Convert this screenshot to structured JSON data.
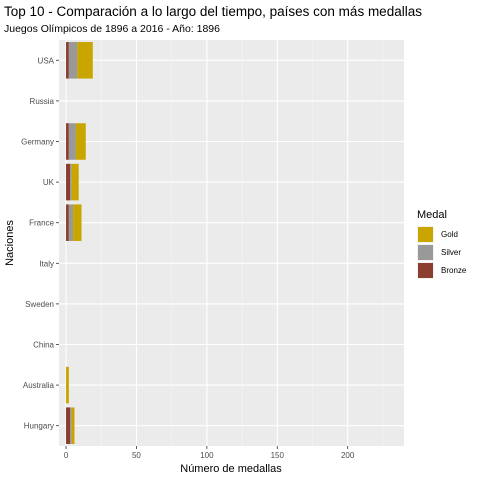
{
  "chart_data": {
    "type": "bar",
    "orientation": "horizontal",
    "stacked": true,
    "title": "Top 10 - Comparación a lo largo del tiempo, países con más medallas",
    "subtitle": "Juegos Olímpicos de 1896 a 2016 - Año: 1896",
    "xlabel": "Número de medallas",
    "ylabel": "Naciones",
    "xlim": [
      -5,
      240
    ],
    "x_ticks": [
      0,
      50,
      100,
      150,
      200
    ],
    "categories": [
      "USA",
      "Russia",
      "Germany",
      "UK",
      "France",
      "Italy",
      "Sweden",
      "China",
      "Australia",
      "Hungary"
    ],
    "series": [
      {
        "name": "Bronze",
        "color": "#8B3E2F",
        "values": [
          2,
          0,
          2,
          3,
          2,
          0,
          0,
          0,
          0,
          3
        ]
      },
      {
        "name": "Silver",
        "color": "#999999",
        "values": [
          6,
          0,
          5,
          1,
          3,
          0,
          0,
          0,
          0,
          1
        ]
      },
      {
        "name": "Gold",
        "color": "#C9A500",
        "values": [
          11,
          0,
          7,
          5,
          6,
          0,
          0,
          0,
          2,
          2
        ]
      }
    ],
    "legend": {
      "title": "Medal",
      "position": "right",
      "order": [
        "Gold",
        "Silver",
        "Bronze"
      ]
    },
    "grid": true
  }
}
